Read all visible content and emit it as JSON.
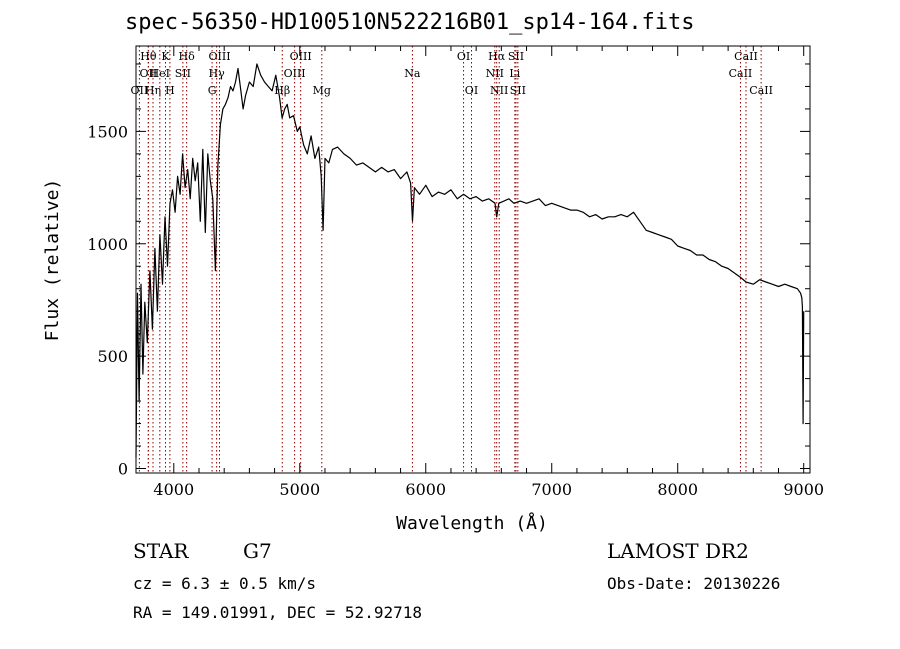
{
  "chart_data": {
    "type": "line",
    "title": "spec-56350-HD100510N522216B01_sp14-164.fits",
    "xlabel": "Wavelength (Å)",
    "ylabel": "Flux (relative)",
    "xlim": [
      3700,
      9050
    ],
    "ylim": [
      -20,
      1880
    ],
    "x_ticks": [
      4000,
      5000,
      6000,
      7000,
      8000,
      9000
    ],
    "y_ticks": [
      0,
      500,
      1000,
      1500
    ],
    "grid": false,
    "series": [
      {
        "x": [
          3700,
          3712,
          3725,
          3740,
          3755,
          3770,
          3790,
          3810,
          3830,
          3850,
          3870,
          3890,
          3910,
          3930,
          3950,
          3970,
          3990,
          4010,
          4030,
          4050,
          4070,
          4090,
          4110,
          4130,
          4150,
          4170,
          4190,
          4210,
          4230,
          4250,
          4270,
          4290,
          4310,
          4330,
          4350,
          4370,
          4390,
          4410,
          4430,
          4450,
          4470,
          4490,
          4510,
          4530,
          4550,
          4570,
          4600,
          4630,
          4660,
          4690,
          4720,
          4750,
          4780,
          4810,
          4840,
          4860,
          4880,
          4900,
          4920,
          4950,
          4980,
          5000,
          5030,
          5060,
          5090,
          5120,
          5150,
          5170,
          5185,
          5200,
          5230,
          5260,
          5300,
          5350,
          5400,
          5450,
          5500,
          5550,
          5600,
          5650,
          5700,
          5750,
          5800,
          5850,
          5880,
          5895,
          5910,
          5950,
          6000,
          6050,
          6100,
          6150,
          6200,
          6250,
          6300,
          6350,
          6400,
          6450,
          6500,
          6550,
          6563,
          6580,
          6620,
          6660,
          6700,
          6750,
          6800,
          6850,
          6900,
          6950,
          7000,
          7050,
          7100,
          7150,
          7200,
          7250,
          7300,
          7350,
          7400,
          7450,
          7500,
          7550,
          7600,
          7650,
          7700,
          7750,
          7800,
          7850,
          7900,
          7950,
          8000,
          8050,
          8100,
          8150,
          8200,
          8250,
          8300,
          8350,
          8400,
          8450,
          8500,
          8542,
          8600,
          8650,
          8700,
          8750,
          8800,
          8850,
          8900,
          8950,
          8975,
          8985,
          8990,
          8995,
          9000
        ],
        "y": [
          50,
          780,
          300,
          820,
          420,
          740,
          560,
          880,
          620,
          980,
          700,
          1040,
          820,
          1120,
          900,
          1180,
          1240,
          1140,
          1300,
          1220,
          1400,
          1250,
          1330,
          1200,
          1380,
          1280,
          1360,
          1100,
          1420,
          1050,
          1400,
          1280,
          1200,
          880,
          1350,
          1530,
          1600,
          1620,
          1650,
          1700,
          1680,
          1720,
          1780,
          1690,
          1600,
          1660,
          1720,
          1700,
          1800,
          1750,
          1720,
          1700,
          1680,
          1750,
          1650,
          1560,
          1600,
          1620,
          1560,
          1570,
          1500,
          1520,
          1440,
          1400,
          1480,
          1380,
          1430,
          1300,
          1060,
          1380,
          1360,
          1420,
          1430,
          1400,
          1380,
          1350,
          1360,
          1340,
          1320,
          1340,
          1320,
          1330,
          1290,
          1320,
          1270,
          1100,
          1250,
          1220,
          1260,
          1210,
          1230,
          1220,
          1240,
          1200,
          1220,
          1200,
          1210,
          1190,
          1200,
          1180,
          1120,
          1180,
          1190,
          1200,
          1180,
          1190,
          1180,
          1190,
          1200,
          1170,
          1180,
          1170,
          1160,
          1150,
          1150,
          1140,
          1120,
          1130,
          1110,
          1120,
          1120,
          1130,
          1120,
          1140,
          1100,
          1060,
          1050,
          1040,
          1030,
          1020,
          990,
          980,
          970,
          950,
          950,
          930,
          920,
          900,
          890,
          870,
          850,
          830,
          820,
          840,
          830,
          820,
          810,
          820,
          810,
          800,
          780,
          760,
          720,
          200,
          700
        ]
      }
    ],
    "lines": [
      {
        "w": 3727,
        "label": "OII",
        "row": 2
      },
      {
        "w": 3798,
        "label": "OII",
        "row": 1
      },
      {
        "w": 3798,
        "label": "Hθ",
        "row": 0
      },
      {
        "w": 3835,
        "label": "Hη",
        "row": 2
      },
      {
        "w": 3889,
        "label": "HeI",
        "row": 1
      },
      {
        "w": 3934,
        "label": "K",
        "row": 0
      },
      {
        "w": 3969,
        "label": "H",
        "row": 2
      },
      {
        "w": 4072,
        "label": "SII",
        "row": 1
      },
      {
        "w": 4102,
        "label": "Hδ",
        "row": 0
      },
      {
        "w": 4304,
        "label": "G",
        "row": 2
      },
      {
        "w": 4340,
        "label": "Hγ",
        "row": 1
      },
      {
        "w": 4363,
        "label": "OIII",
        "row": 0
      },
      {
        "w": 4861,
        "label": "Hβ",
        "row": 2
      },
      {
        "w": 4959,
        "label": "OIII",
        "row": 1
      },
      {
        "w": 5007,
        "label": "OIII",
        "row": 0
      },
      {
        "w": 5175,
        "label": "Mg",
        "row": 2
      },
      {
        "w": 5894,
        "label": "Na",
        "row": 1
      },
      {
        "w": 6300,
        "label": "OI",
        "row": 0
      },
      {
        "w": 6363,
        "label": "OI",
        "row": 2
      },
      {
        "w": 6548,
        "label": "NII",
        "row": 1
      },
      {
        "w": 6563,
        "label": "Hα",
        "row": 0
      },
      {
        "w": 6583,
        "label": "NII",
        "row": 2
      },
      {
        "w": 6707,
        "label": "Li",
        "row": 1
      },
      {
        "w": 6716,
        "label": "SII",
        "row": 0
      },
      {
        "w": 6731,
        "label": "SII",
        "row": 2
      },
      {
        "w": 8498,
        "label": "CaII",
        "row": 1
      },
      {
        "w": 8542,
        "label": "CaII",
        "row": 0
      },
      {
        "w": 8662,
        "label": "CaII",
        "row": 2
      }
    ]
  },
  "footer": {
    "object": "STAR",
    "subclass": "G7",
    "survey": "LAMOST DR2",
    "cz": "cz = 6.3 ± 0.5 km/s",
    "obs_date": "Obs-Date: 20130226",
    "radec": "RA = 149.01991, DEC =  52.92718"
  },
  "colors": {
    "spectrum": "#000000",
    "line_markers": "#8b0000"
  }
}
